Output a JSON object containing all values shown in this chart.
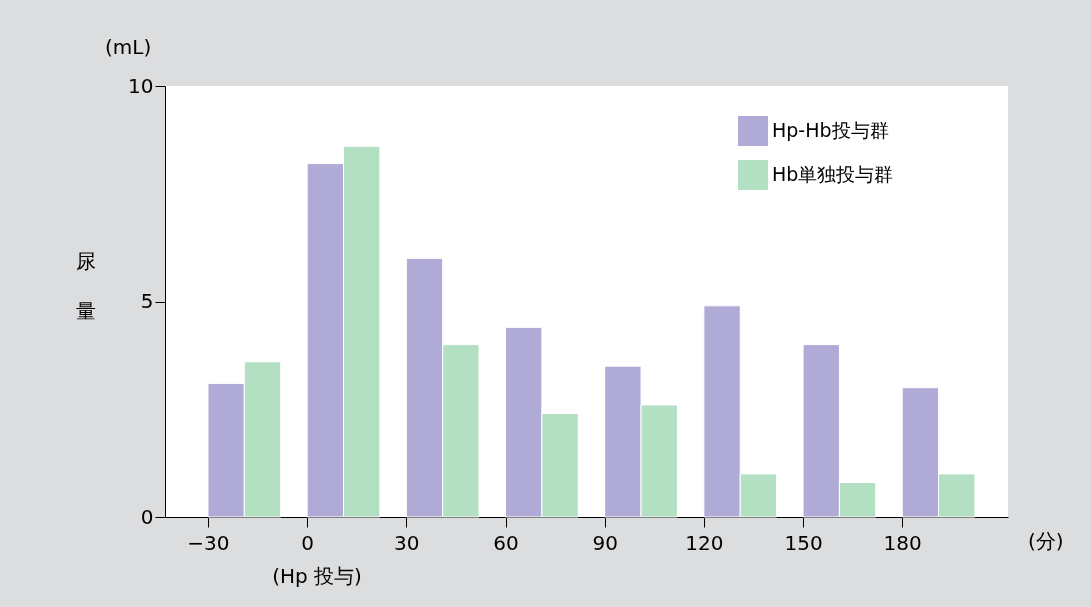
{
  "chart_data": {
    "type": "bar",
    "ylabel": "尿量",
    "xlabel": "(分)",
    "annotations": [
      "(mL)",
      "(Hp 投与)"
    ],
    "series": [
      {
        "name": "Hp-Hb投与群",
        "color": "#b0abd6",
        "x": [
          -24.5,
          5.5,
          35.5,
          65.5,
          95.5,
          125.5,
          155.5,
          185.5
        ],
        "values": [
          3.1,
          8.2,
          6.0,
          4.4,
          3.5,
          4.9,
          4.0,
          3.0
        ]
      },
      {
        "name": "Hb単独投与群",
        "color": "#b3dfc3",
        "x": [
          -13.5,
          16.5,
          46.5,
          76.5,
          106.5,
          136.5,
          166.5,
          196.5
        ],
        "values": [
          3.6,
          8.6,
          4.0,
          2.4,
          2.6,
          1.0,
          0.8,
          1.0
        ]
      }
    ],
    "xlim": [
      -43,
      212
    ],
    "xticks": [
      -30,
      0,
      30,
      60,
      90,
      120,
      150,
      180
    ],
    "ylim": [
      0,
      10
    ],
    "yticks": [
      0,
      5,
      10
    ],
    "grid": false,
    "legend": "top right"
  }
}
